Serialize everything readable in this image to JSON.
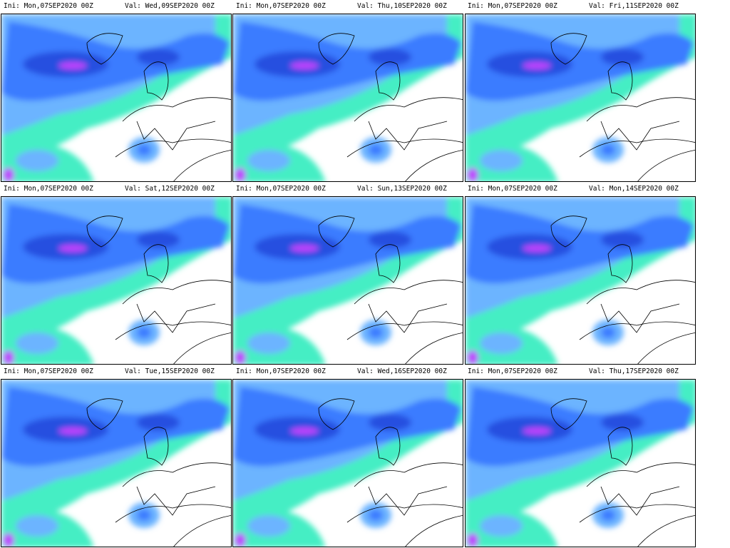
{
  "panels": [
    {
      "ini": "Ini: Mon,07SEP2020 00Z",
      "val": "Val: Wed,09SEP2020 00Z"
    },
    {
      "ini": "Ini: Mon,07SEP2020 00Z",
      "val": "Val: Thu,10SEP2020 00Z"
    },
    {
      "ini": "Ini: Mon,07SEP2020 00Z",
      "val": "Val: Fri,11SEP2020 00Z"
    },
    {
      "ini": "Ini: Mon,07SEP2020 00Z",
      "val": "Val: Sat,12SEP2020 00Z"
    },
    {
      "ini": "Ini: Mon,07SEP2020 00Z",
      "val": "Val: Sun,13SEP2020 00Z"
    },
    {
      "ini": "Ini: Mon,07SEP2020 00Z",
      "val": "Val: Mon,14SEP2020 00Z"
    },
    {
      "ini": "Ini: Mon,07SEP2020 00Z",
      "val": "Val: Tue,15SEP2020 00Z"
    },
    {
      "ini": "Ini: Mon,07SEP2020 00Z",
      "val": "Val: Wed,16SEP2020 00Z"
    },
    {
      "ini": "Ini: Mon,07SEP2020 00Z",
      "val": "Val: Thu,17SEP2020 00Z"
    }
  ]
}
